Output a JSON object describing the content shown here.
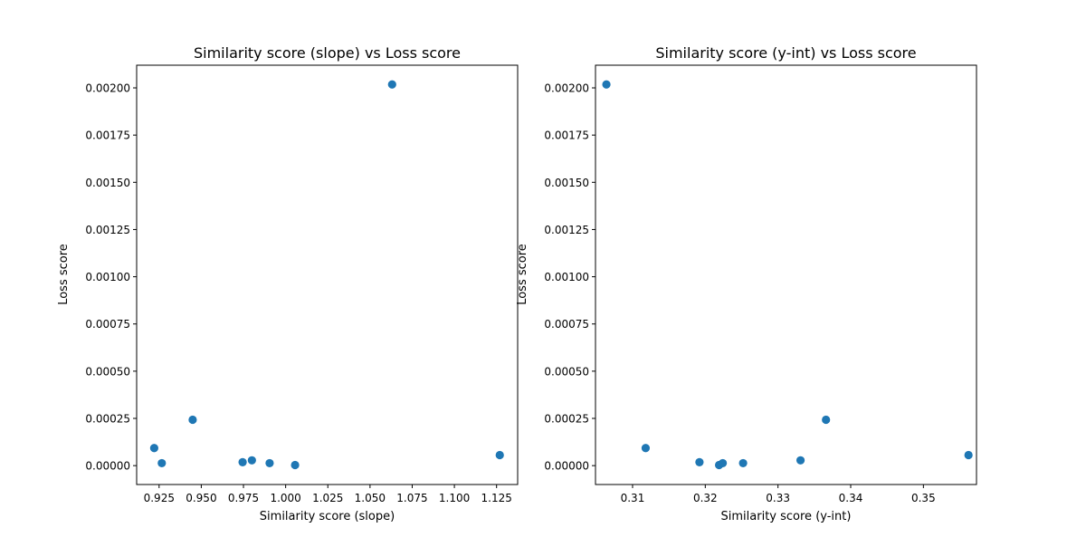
{
  "chart_data": [
    {
      "type": "scatter",
      "title": "Similarity score (slope) vs Loss score",
      "xlabel": "Similarity score (slope)",
      "ylabel": "Loss score",
      "xlim": [
        0.9117,
        1.1375
      ],
      "ylim": [
        -0.0001,
        0.00212
      ],
      "xticks": [
        0.925,
        0.95,
        0.975,
        1.0,
        1.025,
        1.05,
        1.075,
        1.1,
        1.125
      ],
      "xtick_labels": [
        "0.925",
        "0.950",
        "0.975",
        "1.000",
        "1.025",
        "1.050",
        "1.075",
        "1.100",
        "1.125"
      ],
      "yticks": [
        0,
        0.00025,
        0.0005,
        0.00075,
        0.001,
        0.00125,
        0.0015,
        0.00175,
        0.002
      ],
      "ytick_labels": [
        "0.00000",
        "0.00025",
        "0.00050",
        "0.00075",
        "0.00100",
        "0.00125",
        "0.00150",
        "0.00175",
        "0.00200"
      ],
      "grid": false,
      "marker_color": "#1f77b4",
      "points": [
        {
          "x": 0.9221,
          "y": 9.3e-05
        },
        {
          "x": 0.9266,
          "y": 1.3e-05
        },
        {
          "x": 0.9449,
          "y": 0.000243
        },
        {
          "x": 0.9745,
          "y": 1.8e-05
        },
        {
          "x": 0.98,
          "y": 2.8e-05
        },
        {
          "x": 0.9905,
          "y": 1.3e-05
        },
        {
          "x": 1.0056,
          "y": 3e-06
        },
        {
          "x": 1.0631,
          "y": 0.002018
        },
        {
          "x": 1.1269,
          "y": 5.6e-05
        }
      ]
    },
    {
      "type": "scatter",
      "title": "Similarity score (y-int) vs Loss score",
      "xlabel": "Similarity score (y-int)",
      "ylabel": "Loss score",
      "xlim": [
        0.3049,
        0.3573
      ],
      "ylim": [
        -0.0001,
        0.00212
      ],
      "xticks": [
        0.31,
        0.32,
        0.33,
        0.34,
        0.35
      ],
      "xtick_labels": [
        "0.31",
        "0.32",
        "0.33",
        "0.34",
        "0.35"
      ],
      "yticks": [
        0,
        0.00025,
        0.0005,
        0.00075,
        0.001,
        0.00125,
        0.0015,
        0.00175,
        0.002
      ],
      "ytick_labels": [
        "0.00000",
        "0.00025",
        "0.00050",
        "0.00075",
        "0.00100",
        "0.00125",
        "0.00150",
        "0.00175",
        "0.00200"
      ],
      "grid": false,
      "marker_color": "#1f77b4",
      "points": [
        {
          "x": 0.3064,
          "y": 0.002018
        },
        {
          "x": 0.3118,
          "y": 9.3e-05
        },
        {
          "x": 0.3192,
          "y": 1.8e-05
        },
        {
          "x": 0.3219,
          "y": 3e-06
        },
        {
          "x": 0.3224,
          "y": 1.3e-05
        },
        {
          "x": 0.3252,
          "y": 1.3e-05
        },
        {
          "x": 0.3331,
          "y": 2.8e-05
        },
        {
          "x": 0.3366,
          "y": 0.000243
        },
        {
          "x": 0.3562,
          "y": 5.6e-05
        }
      ]
    }
  ]
}
